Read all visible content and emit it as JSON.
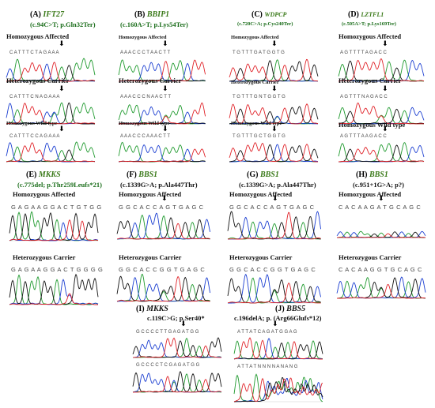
{
  "panels": {
    "A": {
      "letter": "(A)",
      "gene": "IFT27",
      "mutation": "(c.94C>T; p.Gln32Ter)",
      "rows": [
        {
          "label": "Homozygous Affected",
          "seq": "C A T T T C T A G A A A"
        },
        {
          "label": "Heterozygous Carrier",
          "seq": "C A T T T C N A G A A A"
        },
        {
          "label": "Homozygous Wild type",
          "seq": "C A T T T C C A G A A A"
        }
      ]
    },
    "B": {
      "letter": "(B)",
      "gene": "BBIP1",
      "mutation": "(c.160A>T; p.Lys54Ter)",
      "rows": [
        {
          "label": "Homozygous Affected",
          "seq": "A A A C C C T A A C T T"
        },
        {
          "label": "Heterozygous Carrier",
          "seq": "A A A C C C N A A C T T"
        },
        {
          "label": "Homozygous Wild type",
          "seq": "A A A C C C A A A C T T"
        }
      ]
    },
    "C": {
      "letter": "(C)",
      "gene": "WDPCP",
      "mutation": "(c.720C>A; p.Cys240Ter)",
      "rows": [
        {
          "label": "Homozygous Affected",
          "seq": "T G T T T G A T G G T G"
        },
        {
          "label": "Heterozygous Carrier",
          "seq": "T G T T T G N T G G T G"
        },
        {
          "label": "Homozygous Wild type",
          "seq": "T G T T T G C T G G T G"
        }
      ]
    },
    "D": {
      "letter": "(D)",
      "gene": "LZTFL1",
      "mutation": "(c.505A>T; p.Lys169Ter)",
      "rows": [
        {
          "label": "Homozygous Affected",
          "seq": "A G T T T T A G A C C"
        },
        {
          "label": "Heterozygous Carrier",
          "seq": "A G T T T N A G A C C"
        },
        {
          "label": "Homozygous Wild type",
          "seq": "A G T T T A A G A C C"
        }
      ]
    },
    "E": {
      "letter": "(E)",
      "gene": "MKKS",
      "mutation": "(c.775del; p.Thr259Leufs*21)",
      "rows": [
        {
          "label": "Homozygous Affected",
          "seq": "G A G A A G G A C T G T G G"
        },
        {
          "label": "Heterozygous Carrier",
          "seq": "G A G A A G G A C T G G G G"
        }
      ]
    },
    "F": {
      "letter": "(F)",
      "gene": "BBS1",
      "mutation": "(c.1339G>A; p.Ala447Thr)",
      "rows": [
        {
          "label": "Homozygous Affected",
          "seq": "G G C A C C A G T G A G C"
        },
        {
          "label": "Heterozygous Carrier",
          "seq": "G G C A C C G G T G A G C"
        }
      ]
    },
    "G": {
      "letter": "(G)",
      "gene": "BBS1",
      "mutation": "(c.1339G>A; p.Ala447Thr)",
      "rows": [
        {
          "label": "Homozygous Affected",
          "seq": "G G C A C C A G T G A G C"
        },
        {
          "label": "Heterozygous Carrier",
          "seq": "G G C A C C G G T G A G C"
        }
      ]
    },
    "H": {
      "letter": "(H)",
      "gene": "BBS1",
      "mutation": "(c.951+1G>A; p?)",
      "rows": [
        {
          "label": "Homozygous Affected",
          "seq": "C A C A A G A T G C A G C"
        },
        {
          "label": "Heterozygous Carrier",
          "seq": "C A C A A G G T G C A G C"
        }
      ]
    },
    "I": {
      "letter": "(I)",
      "gene": "MKKS",
      "mutation": "c.119C>G; p.Ser40*",
      "rows": [
        {
          "seq": "G C C C C T T G A G A T G G"
        },
        {
          "seq": "G C C C C T C G A G A T G G"
        }
      ]
    },
    "J": {
      "letter": "(J)",
      "gene": "BBS5",
      "mutation": "c.196delA; p. (Arg66Glufs*12)",
      "rows": [
        {
          "seq": "A T T A T C A G A T G G A G"
        },
        {
          "seq": "A T T A T N N N N A N A N G"
        }
      ]
    }
  },
  "colors": {
    "A": "#1f9a2e",
    "C": "#1c3fd1",
    "G": "#111111",
    "T": "#e0242a",
    "gene": "#3b7a1a"
  }
}
